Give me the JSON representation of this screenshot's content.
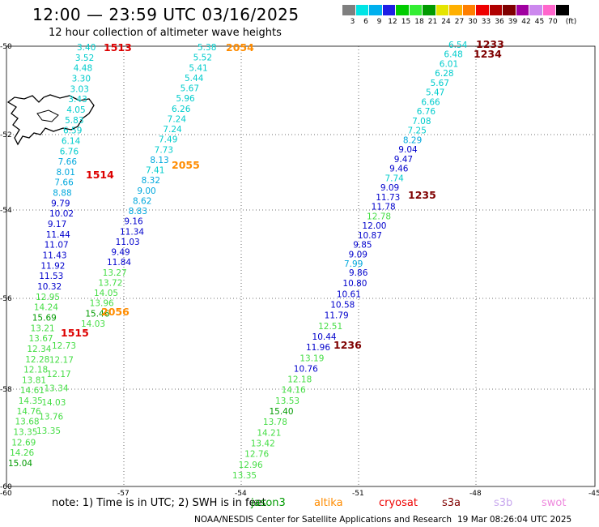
{
  "header": {
    "title": "12:00 — 23:59 UTC 03/16/2025",
    "subtitle": "12 hour collection of altimeter wave heights"
  },
  "colorbar": {
    "colors": [
      "#7f7f7f",
      "#00e5e5",
      "#00b0ee",
      "#1e1ee5",
      "#00cc00",
      "#33ee33",
      "#009a00",
      "#e5e500",
      "#ffb000",
      "#ff7f00",
      "#ee0000",
      "#b00000",
      "#7f0000",
      "#a000a0",
      "#cc88ee",
      "#ff66cc",
      "#000000"
    ],
    "labels": [
      "3",
      "6",
      "9",
      "12",
      "15",
      "18",
      "21",
      "24",
      "27",
      "30",
      "33",
      "36",
      "39",
      "42",
      "45",
      "70",
      "(ft)"
    ]
  },
  "axes": {
    "x_ticks": [
      "-60",
      "-57",
      "-54",
      "-51",
      "-48",
      "-45"
    ],
    "y_ticks": [
      "-50",
      "-52",
      "-54",
      "-56",
      "-58",
      "-60"
    ]
  },
  "footer": {
    "note": "note:  1) Time is in UTC; 2) SWH is in feet",
    "credit": "NOAA/NESDIS Center for Satellite Applications and Research",
    "timestamp": "19 Mar 08:26:04 UTC 2025",
    "satellites": [
      {
        "name": "jason3",
        "color": "#009a00"
      },
      {
        "name": "altika",
        "color": "#ff8c00"
      },
      {
        "name": "cryosat",
        "color": "#ee0000"
      },
      {
        "name": "s3a",
        "color": "#7f0000"
      },
      {
        "name": "s3b",
        "color": "#c8a8ee"
      },
      {
        "name": "swot",
        "color": "#ee88dd"
      }
    ]
  },
  "tracks": [
    {
      "name": "track-1513",
      "time_label": "1513",
      "label_color": "#dd0000",
      "points": [
        {
          "v": "3.40",
          "c": "#00cccc"
        },
        {
          "v": "3.52",
          "c": "#00cccc"
        },
        {
          "v": "4.48",
          "c": "#00cccc"
        },
        {
          "v": "3.30",
          "c": "#00cccc"
        },
        {
          "v": "3.03",
          "c": "#00cccc"
        },
        {
          "v": "3.43",
          "c": "#00cccc"
        },
        {
          "v": "4.05",
          "c": "#00cccc"
        },
        {
          "v": "5.83",
          "c": "#00cccc"
        },
        {
          "v": "6.59",
          "c": "#00cccc"
        },
        {
          "v": "6.14",
          "c": "#00cccc"
        },
        {
          "v": "6.76",
          "c": "#00cccc"
        },
        {
          "v": "7.66",
          "c": "#00a8dd"
        },
        {
          "v": "8.01",
          "c": "#00a8dd"
        },
        {
          "v": "7.66",
          "c": "#00a8dd"
        },
        {
          "v": "8.88",
          "c": "#00a8dd"
        },
        {
          "v": "9.79",
          "c": "#0000cc"
        },
        {
          "v": "10.02",
          "c": "#0000cc"
        },
        {
          "v": "9.17",
          "c": "#0000cc"
        },
        {
          "v": "11.44",
          "c": "#0000cc"
        },
        {
          "v": "11.07",
          "c": "#0000cc"
        },
        {
          "v": "11.43",
          "c": "#0000cc"
        },
        {
          "v": "11.92",
          "c": "#0000cc"
        },
        {
          "v": "11.53",
          "c": "#0000cc"
        },
        {
          "v": "10.32",
          "c": "#0000cc"
        },
        {
          "v": "12.95",
          "c": "#44dd44"
        },
        {
          "v": "14.24",
          "c": "#44dd44"
        },
        {
          "v": "15.69",
          "c": "#009a00"
        },
        {
          "v": "13.21",
          "c": "#44dd44"
        },
        {
          "v": "13.67",
          "c": "#44dd44"
        },
        {
          "v": "12.34",
          "c": "#44dd44"
        },
        {
          "v": "12.28",
          "c": "#44dd44"
        },
        {
          "v": "12.18",
          "c": "#44dd44"
        },
        {
          "v": "13.81",
          "c": "#44dd44"
        },
        {
          "v": "14.61",
          "c": "#44dd44"
        },
        {
          "v": "14.35",
          "c": "#44dd44"
        },
        {
          "v": "14.76",
          "c": "#44dd44"
        },
        {
          "v": "13.68",
          "c": "#44dd44"
        },
        {
          "v": "13.35",
          "c": "#44dd44"
        },
        {
          "v": "12.69",
          "c": "#44dd44"
        },
        {
          "v": "14.26",
          "c": "#44dd44"
        },
        {
          "v": "15.04",
          "c": "#009a00"
        }
      ]
    },
    {
      "name": "track-1515",
      "time_label": "1515",
      "label_color": "#dd0000",
      "points": [
        {
          "v": "12.73",
          "c": "#44dd44"
        },
        {
          "v": "12.17",
          "c": "#44dd44"
        },
        {
          "v": "12.17",
          "c": "#44dd44"
        },
        {
          "v": "13.34",
          "c": "#44dd44"
        },
        {
          "v": "14.03",
          "c": "#44dd44"
        },
        {
          "v": "13.76",
          "c": "#44dd44"
        },
        {
          "v": "13.35",
          "c": "#44dd44"
        }
      ]
    },
    {
      "name": "track-2054",
      "time_label": "2054",
      "label_color": "#ff8c00",
      "points": [
        {
          "v": "5.38",
          "c": "#00cccc"
        },
        {
          "v": "5.52",
          "c": "#00cccc"
        },
        {
          "v": "5.41",
          "c": "#00cccc"
        },
        {
          "v": "5.44",
          "c": "#00cccc"
        },
        {
          "v": "5.67",
          "c": "#00cccc"
        },
        {
          "v": "5.96",
          "c": "#00cccc"
        },
        {
          "v": "6.26",
          "c": "#00cccc"
        },
        {
          "v": "7.24",
          "c": "#00cccc"
        },
        {
          "v": "7.24",
          "c": "#00cccc"
        },
        {
          "v": "7.49",
          "c": "#00cccc"
        },
        {
          "v": "7.73",
          "c": "#00cccc"
        },
        {
          "v": "8.13",
          "c": "#00a8dd"
        },
        {
          "v": "7.41",
          "c": "#00cccc"
        },
        {
          "v": "8.32",
          "c": "#00a8dd"
        },
        {
          "v": "9.00",
          "c": "#00a8dd"
        },
        {
          "v": "8.62",
          "c": "#00a8dd"
        },
        {
          "v": "8.83",
          "c": "#00a8dd"
        },
        {
          "v": "9.16",
          "c": "#0000cc"
        },
        {
          "v": "11.34",
          "c": "#0000cc"
        },
        {
          "v": "11.03",
          "c": "#0000cc"
        },
        {
          "v": "9.49",
          "c": "#0000cc"
        },
        {
          "v": "11.84",
          "c": "#0000cc"
        },
        {
          "v": "13.27",
          "c": "#44dd44"
        },
        {
          "v": "13.72",
          "c": "#44dd44"
        },
        {
          "v": "14.05",
          "c": "#44dd44"
        },
        {
          "v": "13.96",
          "c": "#44dd44"
        },
        {
          "v": "15.46",
          "c": "#009a00"
        },
        {
          "v": "14.03",
          "c": "#44dd44"
        }
      ]
    },
    {
      "name": "track-1236",
      "time_label": "1236",
      "label_color": "#7f0000",
      "points": [
        {
          "v": "9.86",
          "c": "#0000cc"
        },
        {
          "v": "10.80",
          "c": "#0000cc"
        },
        {
          "v": "10.61",
          "c": "#0000cc"
        },
        {
          "v": "10.58",
          "c": "#0000cc"
        },
        {
          "v": "11.79",
          "c": "#0000cc"
        },
        {
          "v": "12.51",
          "c": "#44dd44"
        },
        {
          "v": "10.44",
          "c": "#0000cc"
        },
        {
          "v": "11.96",
          "c": "#0000cc"
        },
        {
          "v": "13.19",
          "c": "#44dd44"
        },
        {
          "v": "10.76",
          "c": "#0000cc"
        },
        {
          "v": "12.18",
          "c": "#44dd44"
        },
        {
          "v": "14.16",
          "c": "#44dd44"
        },
        {
          "v": "13.53",
          "c": "#44dd44"
        },
        {
          "v": "15.40",
          "c": "#009a00"
        },
        {
          "v": "13.78",
          "c": "#44dd44"
        },
        {
          "v": "14.21",
          "c": "#44dd44"
        },
        {
          "v": "13.42",
          "c": "#44dd44"
        },
        {
          "v": "12.76",
          "c": "#44dd44"
        },
        {
          "v": "12.96",
          "c": "#44dd44"
        },
        {
          "v": "13.35",
          "c": "#44dd44"
        }
      ]
    },
    {
      "name": "track-1233",
      "time_label": "1233",
      "label_color": "#7f0000",
      "points": [
        {
          "v": "6.54",
          "c": "#00cccc"
        },
        {
          "v": "6.48",
          "c": "#00cccc"
        },
        {
          "v": "6.01",
          "c": "#00cccc"
        },
        {
          "v": "6.28",
          "c": "#00cccc"
        },
        {
          "v": "5.67",
          "c": "#00cccc"
        },
        {
          "v": "5.47",
          "c": "#00cccc"
        },
        {
          "v": "6.66",
          "c": "#00cccc"
        },
        {
          "v": "6.76",
          "c": "#00cccc"
        },
        {
          "v": "7.08",
          "c": "#00cccc"
        },
        {
          "v": "7.25",
          "c": "#00cccc"
        },
        {
          "v": "8.29",
          "c": "#00a8dd"
        },
        {
          "v": "9.04",
          "c": "#0000cc"
        },
        {
          "v": "9.47",
          "c": "#0000cc"
        },
        {
          "v": "9.46",
          "c": "#0000cc"
        },
        {
          "v": "7.74",
          "c": "#00cccc"
        },
        {
          "v": "9.09",
          "c": "#0000cc"
        },
        {
          "v": "11.73",
          "c": "#0000cc"
        },
        {
          "v": "11.78",
          "c": "#0000cc"
        },
        {
          "v": "12.78",
          "c": "#44dd44"
        },
        {
          "v": "12.00",
          "c": "#0000cc"
        },
        {
          "v": "10.87",
          "c": "#0000cc"
        },
        {
          "v": "9.85",
          "c": "#0000cc"
        },
        {
          "v": "9.09",
          "c": "#0000cc"
        },
        {
          "v": "7.99",
          "c": "#00a8dd"
        }
      ]
    }
  ],
  "extra_time_labels": [
    {
      "name": "time-1514",
      "text": "1514",
      "color": "#dd0000"
    },
    {
      "name": "time-2055",
      "text": "2055",
      "color": "#ff8c00"
    },
    {
      "name": "time-2056",
      "text": "2056",
      "color": "#ff8c00"
    },
    {
      "name": "time-1234",
      "text": "1234",
      "color": "#7f0000"
    },
    {
      "name": "time-1235",
      "text": "1235",
      "color": "#7f0000"
    }
  ]
}
